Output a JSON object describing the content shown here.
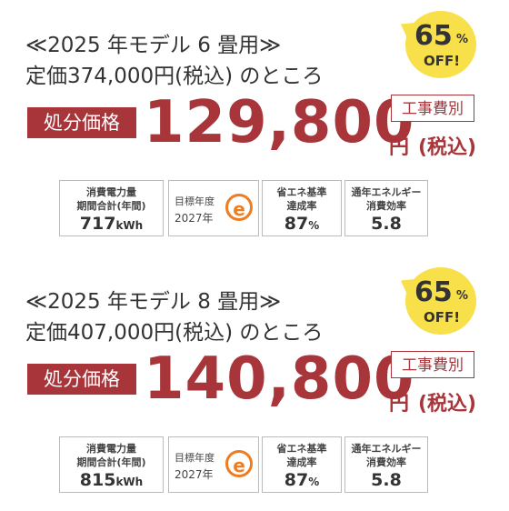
{
  "products": [
    {
      "heading": "≪2025 年モデル 6 畳用≫",
      "list_price": "定価374,000円(税込) のところ",
      "sale_label": "処分価格",
      "price": "129,800",
      "price_unit": "円",
      "tax_note": "(税込)",
      "install_note": "工事費別",
      "badge": {
        "number": "65",
        "unit": "%",
        "text": "OFF!"
      },
      "specs": {
        "energy_label_1": "消費電力量",
        "energy_label_2": "期間合計(年間)",
        "energy_value": "717",
        "energy_unit": "kWh",
        "target_label_1": "目標年度",
        "target_label_2": "2027年",
        "icon": "e",
        "achieve_label_1": "省エネ基準",
        "achieve_label_2": "達成率",
        "achieve_value": "87",
        "achieve_unit": "%",
        "efficiency_label_1": "通年エネルギー",
        "efficiency_label_2": "消費効率",
        "efficiency_value": "5.8"
      }
    },
    {
      "heading": "≪2025 年モデル 8 畳用≫",
      "list_price": "定価407,000円(税込) のところ",
      "sale_label": "処分価格",
      "price": "140,800",
      "price_unit": "円",
      "tax_note": "(税込)",
      "install_note": "工事費別",
      "badge": {
        "number": "65",
        "unit": "%",
        "text": "OFF!"
      },
      "specs": {
        "energy_label_1": "消費電力量",
        "energy_label_2": "期間合計(年間)",
        "energy_value": "815",
        "energy_unit": "kWh",
        "target_label_1": "目標年度",
        "target_label_2": "2027年",
        "icon": "e",
        "achieve_label_1": "省エネ基準",
        "achieve_label_2": "達成率",
        "achieve_value": "87",
        "achieve_unit": "%",
        "efficiency_label_1": "通年エネルギー",
        "efficiency_label_2": "消費効率",
        "efficiency_value": "5.8"
      }
    }
  ]
}
